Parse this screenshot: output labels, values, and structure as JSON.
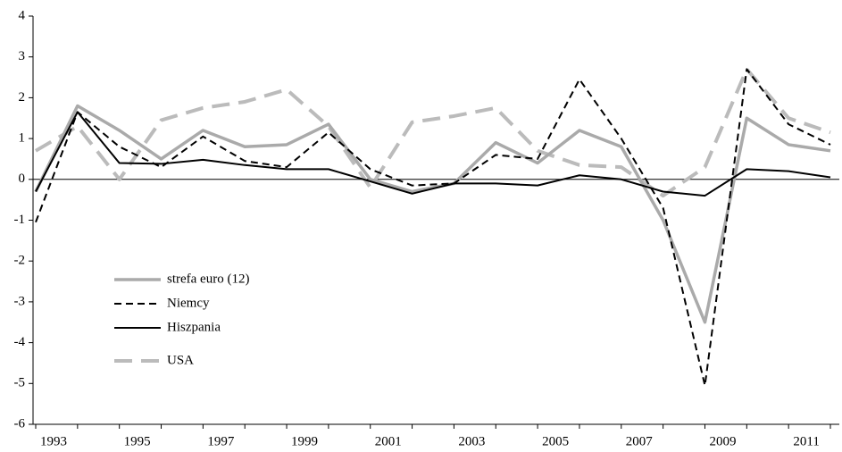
{
  "chart_data": {
    "type": "line",
    "categories": [
      "1993",
      null,
      "1995",
      null,
      "1997",
      null,
      "1999",
      null,
      "2001",
      null,
      "2003",
      null,
      "2005",
      null,
      "2007",
      null,
      "2009",
      null,
      "2011",
      null
    ],
    "series": [
      {
        "name": "strefa euro (12)",
        "color": "#aaaaaa",
        "linestyle": "solid",
        "linewidth": 3.5,
        "values": [
          -0.3,
          1.8,
          1.2,
          0.5,
          1.2,
          0.8,
          0.85,
          1.35,
          0.0,
          -0.3,
          -0.1,
          0.9,
          0.4,
          1.2,
          0.8,
          -1.0,
          -3.5,
          1.5,
          0.85,
          0.7
        ]
      },
      {
        "name": "Niemcy",
        "color": "#000000",
        "linestyle": "dashed",
        "linewidth": 2,
        "values": [
          -1.05,
          1.65,
          0.8,
          0.3,
          1.05,
          0.45,
          0.3,
          1.15,
          0.25,
          -0.15,
          -0.1,
          0.6,
          0.5,
          2.45,
          1.0,
          -0.7,
          -5.05,
          2.7,
          1.35,
          0.85
        ]
      },
      {
        "name": "Hiszpania",
        "color": "#000000",
        "linestyle": "solid",
        "linewidth": 2,
        "values": [
          -0.3,
          1.65,
          0.4,
          0.38,
          0.48,
          0.35,
          0.25,
          0.25,
          -0.05,
          -0.35,
          -0.1,
          -0.1,
          -0.15,
          0.1,
          0.0,
          -0.3,
          -0.4,
          0.25,
          0.2,
          0.05
        ]
      },
      {
        "name": "USA",
        "color": "#bbbbbb",
        "linestyle": "longdash",
        "linewidth": 4,
        "values": [
          0.7,
          1.3,
          0.0,
          1.45,
          1.75,
          1.9,
          2.2,
          1.3,
          -0.2,
          1.4,
          1.55,
          1.75,
          0.7,
          0.35,
          0.3,
          -0.4,
          0.3,
          2.7,
          1.5,
          1.15
        ]
      }
    ],
    "ylim": [
      -6,
      4
    ],
    "yticks": [
      -6,
      -5,
      -4,
      -3,
      -2,
      -1,
      0,
      1,
      2,
      3,
      4
    ],
    "grid": false
  }
}
